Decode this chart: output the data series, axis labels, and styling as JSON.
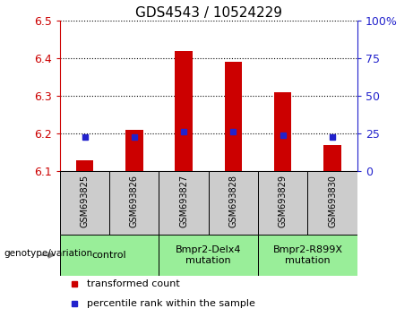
{
  "title": "GDS4543 / 10524229",
  "samples": [
    "GSM693825",
    "GSM693826",
    "GSM693827",
    "GSM693828",
    "GSM693829",
    "GSM693830"
  ],
  "red_values": [
    6.13,
    6.21,
    6.42,
    6.39,
    6.31,
    6.17
  ],
  "blue_values": [
    6.19,
    6.19,
    6.205,
    6.205,
    6.195,
    6.19
  ],
  "bar_baseline": 6.1,
  "ylim_left": [
    6.1,
    6.5
  ],
  "ylim_right": [
    0,
    100
  ],
  "yticks_left": [
    6.1,
    6.2,
    6.3,
    6.4,
    6.5
  ],
  "yticks_right": [
    0,
    25,
    50,
    75,
    100
  ],
  "ytick_labels_right": [
    "0",
    "25",
    "50",
    "75",
    "100%"
  ],
  "red_color": "#cc0000",
  "blue_color": "#2222cc",
  "bar_width": 0.35,
  "group_info": [
    {
      "start": 0,
      "end": 1,
      "label": "control"
    },
    {
      "start": 2,
      "end": 3,
      "label": "Bmpr2-Delx4\nmutation"
    },
    {
      "start": 4,
      "end": 5,
      "label": "Bmpr2-R899X\nmutation"
    }
  ],
  "legend_red": "transformed count",
  "legend_blue": "percentile rank within the sample",
  "genotype_label": "genotype/variation",
  "sample_bg_color": "#cccccc",
  "geno_bg_color": "#99ee99",
  "plot_bg_color": "#ffffff",
  "title_fontsize": 11,
  "tick_fontsize": 9,
  "sample_fontsize": 7,
  "geno_fontsize": 8,
  "legend_fontsize": 8
}
